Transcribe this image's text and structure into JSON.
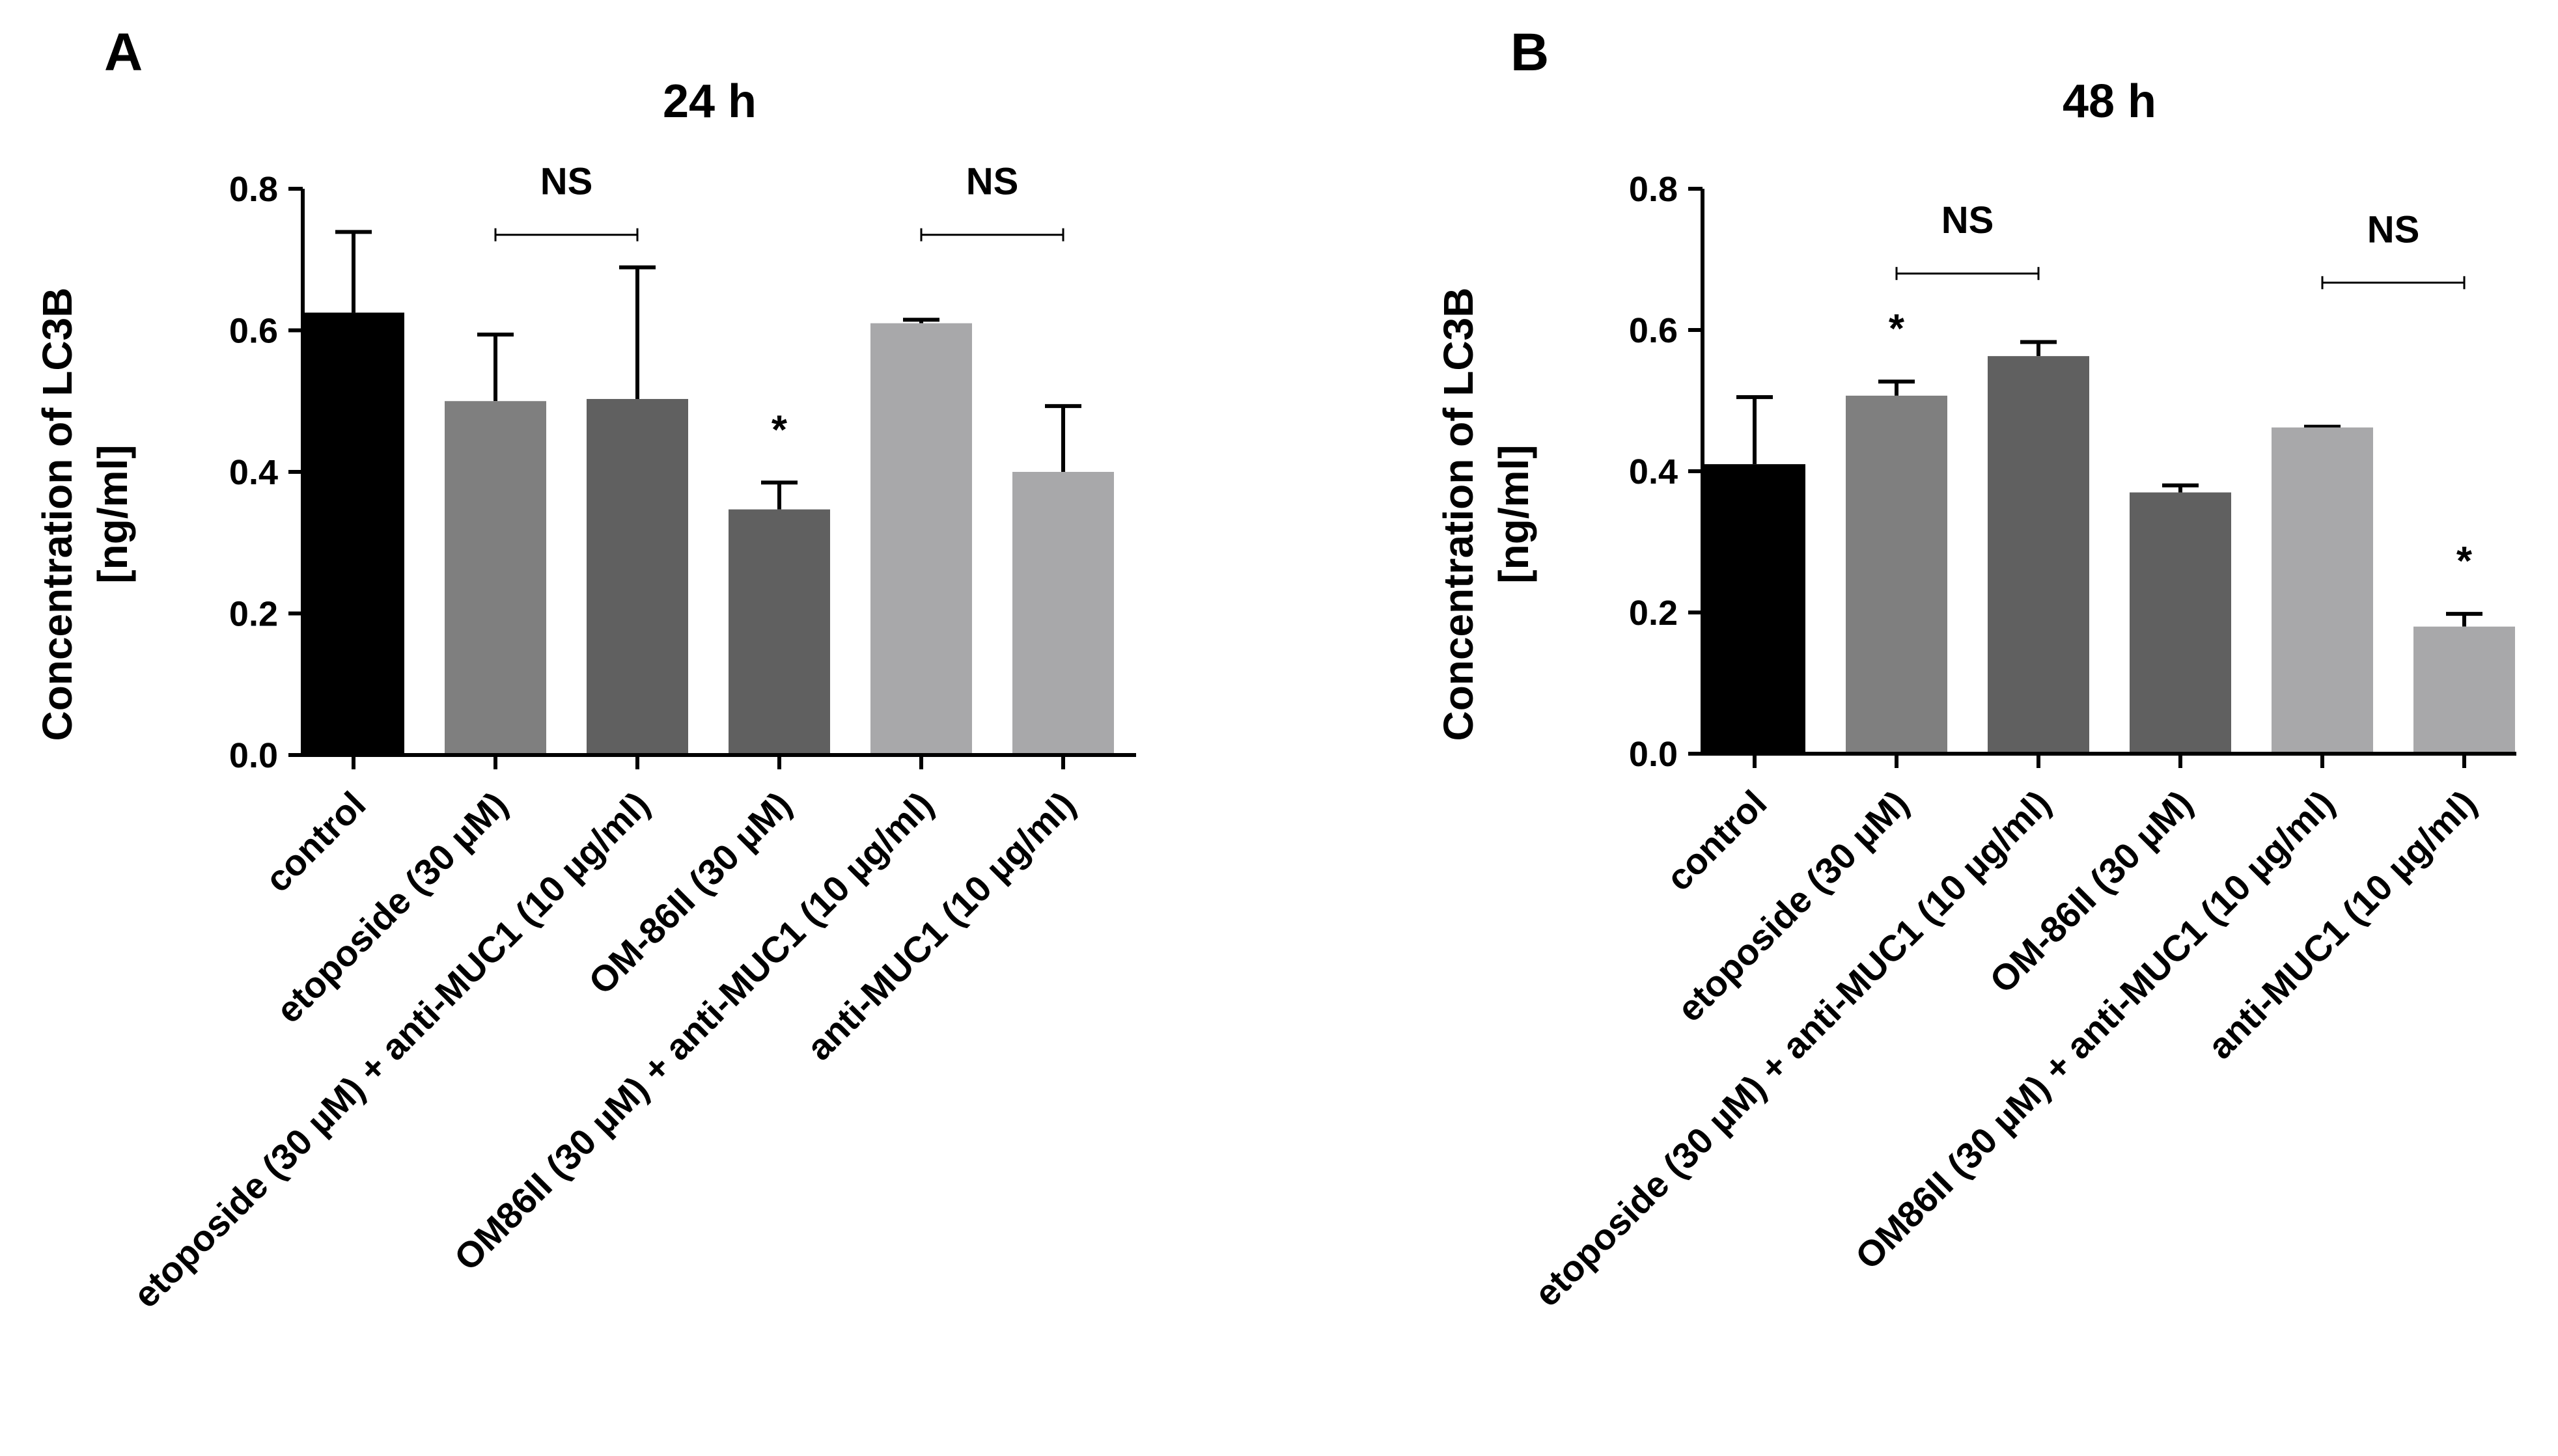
{
  "figure": {
    "panel_letters": [
      "A",
      "B"
    ]
  },
  "chart_data": [
    {
      "type": "bar",
      "panel": "A",
      "title": "24 h",
      "ylabel_line1": "Concentration of LC3B",
      "ylabel_line2": "[ng/ml]",
      "ylim": [
        0,
        0.8
      ],
      "yticks": [
        "0.0",
        "0.2",
        "0.4",
        "0.6",
        "0.8"
      ],
      "ytick_values": [
        0.0,
        0.2,
        0.4,
        0.6,
        0.8
      ],
      "categories": [
        "control",
        "etoposide (30 µM)",
        "etoposide (30 µM) + anti-MUC1 (10 µg/ml)",
        "OM-86II (30 µM)",
        "OM86II (30 µM) + anti-MUC1 (10 µg/ml)",
        "anti-MUC1 (10 µg/ml)"
      ],
      "values": [
        0.625,
        0.5,
        0.503,
        0.347,
        0.61,
        0.4
      ],
      "errors": [
        0.114,
        0.094,
        0.186,
        0.038,
        0.005,
        0.093
      ],
      "colors": [
        "#000000",
        "#7f7f7f",
        "#606060",
        "#606060",
        "#a8a8aa",
        "#a8a8aa"
      ],
      "significance": [
        {
          "index": 3,
          "label": "*"
        }
      ],
      "comparisons": [
        {
          "from": 1,
          "to": 2,
          "label": "NS",
          "level": 0.735
        },
        {
          "from": 4,
          "to": 5,
          "label": "NS",
          "level": 0.735
        }
      ]
    },
    {
      "type": "bar",
      "panel": "B",
      "title": "48 h",
      "ylabel_line1": "Concentration of LC3B",
      "ylabel_line2": "[ng/ml]",
      "ylim": [
        0,
        0.8
      ],
      "yticks": [
        "0.0",
        "0.2",
        "0.4",
        "0.6",
        "0.8"
      ],
      "ytick_values": [
        0.0,
        0.2,
        0.4,
        0.6,
        0.8
      ],
      "categories": [
        "control",
        "etoposide (30 µM)",
        "etoposide (30 µM) + anti-MUC1 (10 µg/ml)",
        "OM-86II (30 µM)",
        "OM86II (30 µM) + anti-MUC1 (10 µg/ml)",
        "anti-MUC1 (10 µg/ml)"
      ],
      "values": [
        0.41,
        0.507,
        0.563,
        0.37,
        0.462,
        0.18
      ],
      "errors": [
        0.095,
        0.02,
        0.02,
        0.01,
        0.001,
        0.018
      ],
      "colors": [
        "#000000",
        "#7f7f7f",
        "#606060",
        "#606060",
        "#a8a8aa",
        "#a8a8aa"
      ],
      "significance": [
        {
          "index": 1,
          "label": "*"
        },
        {
          "index": 5,
          "label": "*"
        }
      ],
      "comparisons": [
        {
          "from": 1,
          "to": 2,
          "label": "NS",
          "level": 0.68
        },
        {
          "from": 4,
          "to": 5,
          "label": "NS",
          "level": 0.667
        }
      ]
    }
  ]
}
